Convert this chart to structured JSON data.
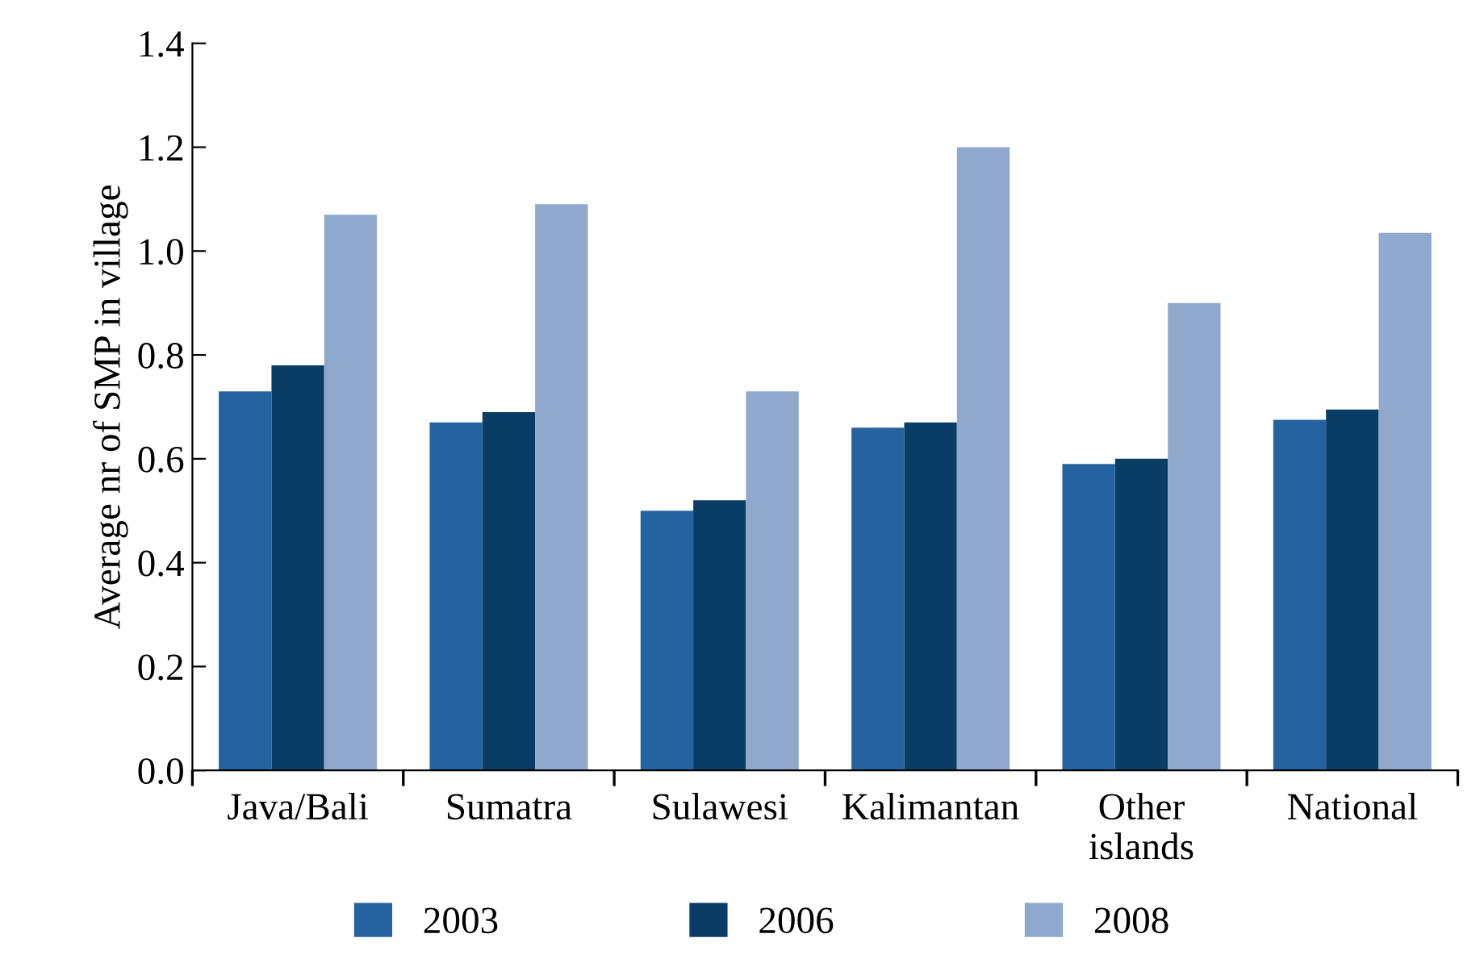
{
  "chart_data": {
    "type": "bar",
    "ylabel": "Average nr of SMP in village",
    "categories": [
      "Java/Bali",
      "Sumatra",
      "Sulawesi",
      "Kalimantan",
      "Other\nislands",
      "National"
    ],
    "series": [
      {
        "name": "2003",
        "color": "#2563a0",
        "values": [
          0.73,
          0.67,
          0.5,
          0.66,
          0.59,
          0.675
        ]
      },
      {
        "name": "2006",
        "color": "#0a3d66",
        "values": [
          0.78,
          0.69,
          0.52,
          0.67,
          0.6,
          0.695
        ]
      },
      {
        "name": "2008",
        "color": "#8fa8cc",
        "values": [
          1.07,
          1.09,
          0.73,
          1.2,
          0.9,
          1.035
        ]
      }
    ],
    "ylim": [
      0,
      1.4
    ],
    "yticks": [
      {
        "value": 0,
        "label": "0.0"
      },
      {
        "value": 0.2,
        "label": "0.2"
      },
      {
        "value": 0.4,
        "label": "0.4"
      },
      {
        "value": 0.6,
        "label": "0.6"
      },
      {
        "value": 0.8,
        "label": "0.8"
      },
      {
        "value": 1.0,
        "label": "1.0"
      },
      {
        "value": 1.2,
        "label": "1.2"
      },
      {
        "value": 1.4,
        "label": "1.4"
      }
    ],
    "grid": false,
    "legend": "bottom"
  }
}
